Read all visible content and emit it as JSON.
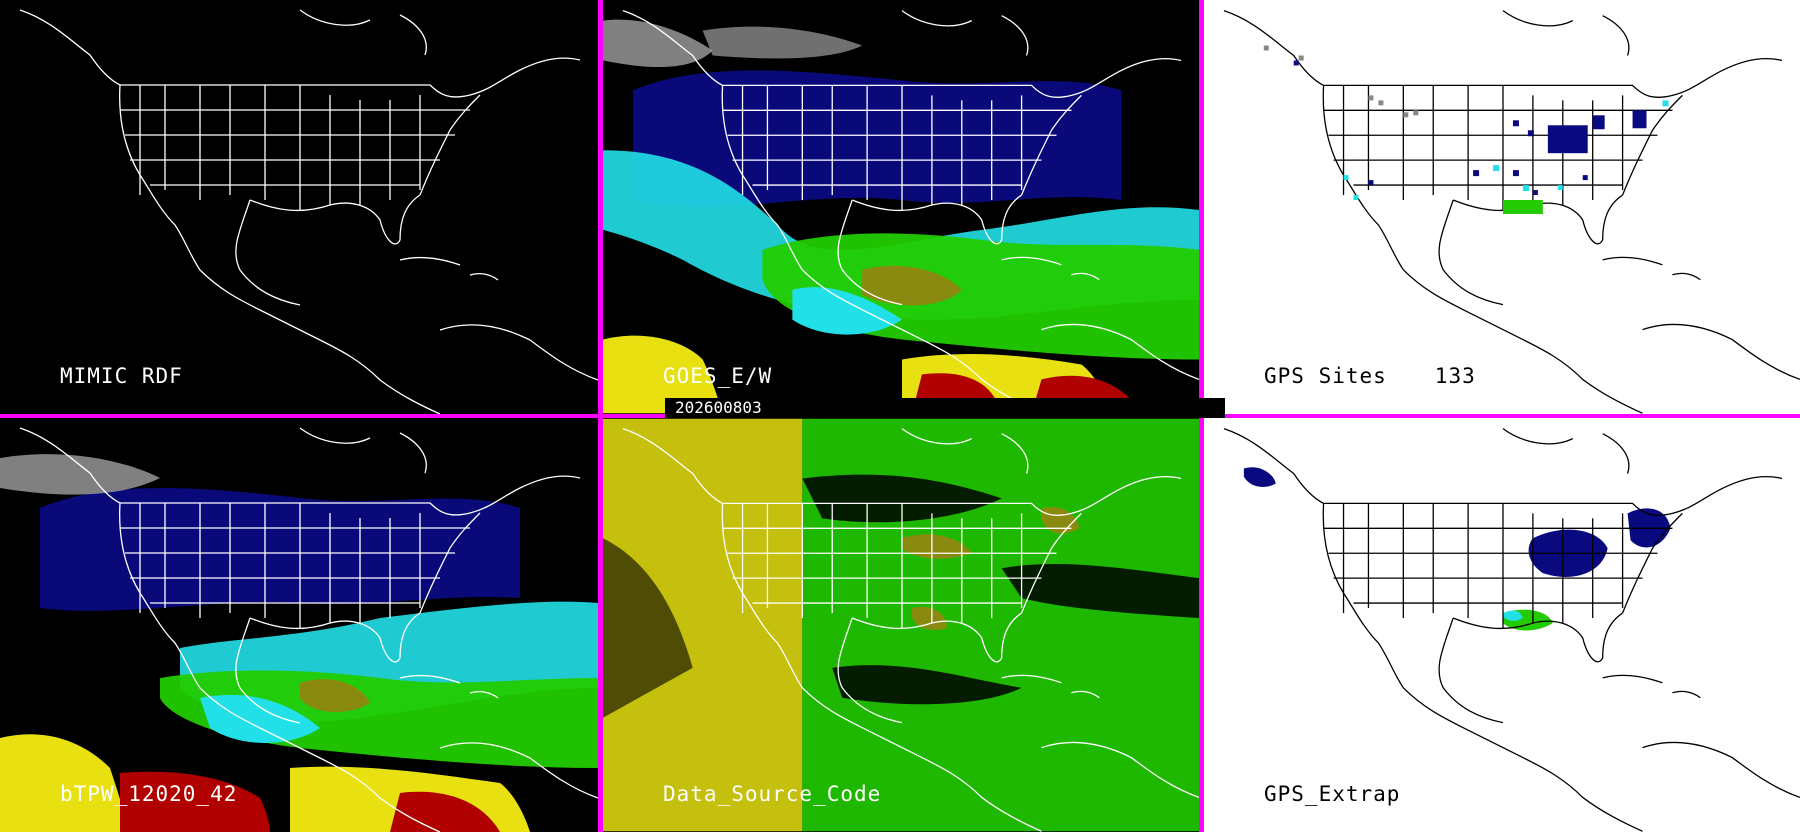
{
  "date_stamp": "202600803",
  "panels": [
    {
      "id": "mimic_rdf",
      "label": "MIMIC RDF",
      "theme": "dark"
    },
    {
      "id": "goes_ew",
      "label": "GOES_E/W",
      "theme": "dark"
    },
    {
      "id": "gps_sites",
      "label": "GPS Sites",
      "count": "133",
      "theme": "light"
    },
    {
      "id": "btpw",
      "label": "bTPW_12020_42",
      "theme": "dark"
    },
    {
      "id": "data_source_code",
      "label": "Data_Source_Code",
      "theme": "dark"
    },
    {
      "id": "gps_extrap",
      "label": "GPS_Extrap",
      "theme": "light"
    }
  ],
  "colors": {
    "frame": "#ff00ff",
    "navy": "#0a0a80",
    "blue": "#1a2ad0",
    "cyan": "#22e0e8",
    "green": "#22cc00",
    "olive": "#8a8a10",
    "yellow": "#e8e010",
    "red": "#b00000",
    "gray": "#a0a0a0"
  }
}
